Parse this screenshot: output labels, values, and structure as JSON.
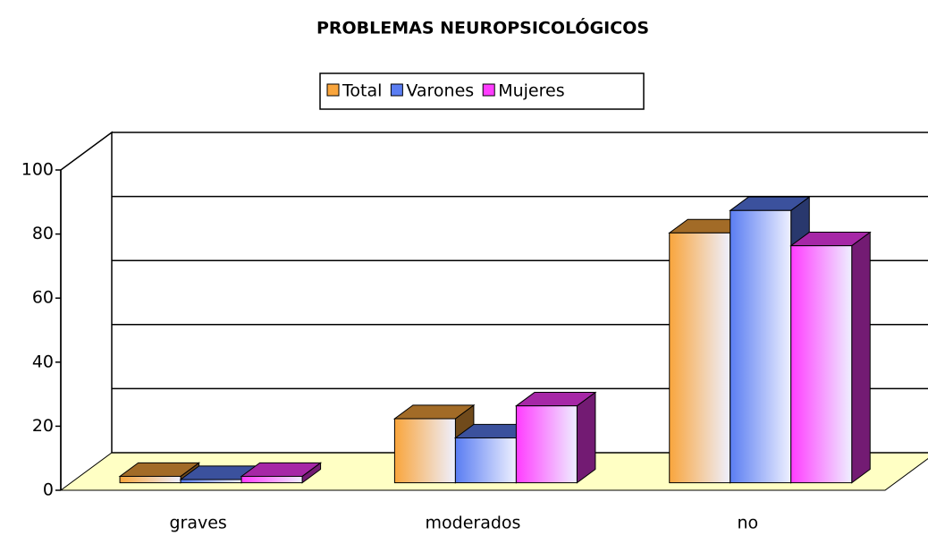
{
  "chart_data": {
    "type": "bar3d",
    "title": "PROBLEMAS NEUROPSICOLÓGICOS",
    "categories": [
      "graves",
      "moderados",
      "no"
    ],
    "series": [
      {
        "name": "Total",
        "color": "#f9a53c",
        "values": [
          2,
          20,
          78
        ]
      },
      {
        "name": "Varones",
        "color": "#5a7df2",
        "values": [
          1,
          14,
          85
        ]
      },
      {
        "name": "Mujeres",
        "color": "#ff3cff",
        "values": [
          2,
          24,
          74
        ]
      }
    ],
    "ylim": [
      0,
      100
    ],
    "yticks": [
      0,
      20,
      40,
      60,
      80,
      100
    ],
    "grid": true,
    "legend": "top"
  }
}
